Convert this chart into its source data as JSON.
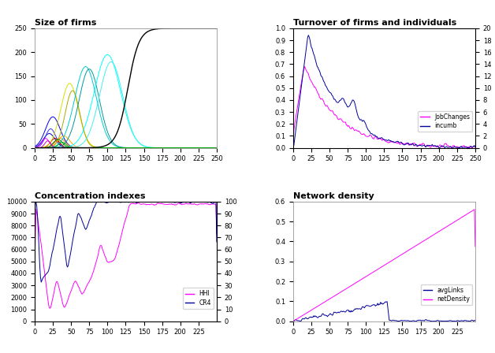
{
  "title_top_left": "Size of firms",
  "title_top_right": "Turnover of firms and individuals",
  "title_bot_left": "Concentration indexes",
  "title_bot_right": "Network density",
  "figsize": [
    6.28,
    4.48
  ],
  "dpi": 100,
  "bg_color": "#ffffff"
}
